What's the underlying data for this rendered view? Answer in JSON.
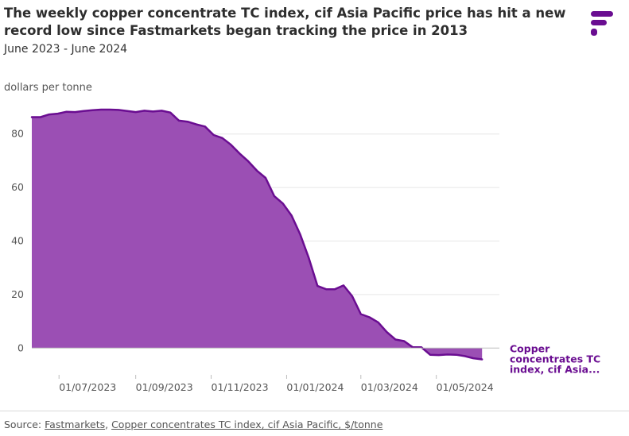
{
  "title": "The weekly copper concentrate TC index, cif Asia Pacific price has hit a new record low since Fastmarkets began tracking the price in 2013",
  "subtitle": "June 2023 - June 2024",
  "source": {
    "prefix": "Source: ",
    "publisher": "Fastmarkets",
    "separator": ", ",
    "series": "Copper concentrates TC index, cif Asia Pacific, $/tonne"
  },
  "colors": {
    "accent": "#6a0d91",
    "fill": "#9b4fb4",
    "logo": "#6a0d91"
  },
  "chart_data": {
    "type": "area",
    "title": "The weekly copper concentrate TC index, cif Asia Pacific price has hit a new record low since Fastmarkets began tracking the price in 2013",
    "ylabel": "dollars per tonne",
    "xlabel": "",
    "ylim": [
      -10,
      90
    ],
    "xlim": [
      "2023-06-09",
      "2024-06-21"
    ],
    "yticks": [
      0,
      20,
      40,
      60,
      80
    ],
    "xticks": [
      "01/07/2023",
      "01/09/2023",
      "01/11/2023",
      "01/01/2024",
      "01/03/2024",
      "01/05/2024"
    ],
    "grid": true,
    "series_label": "Copper concentrates TC index, cif Asia...",
    "series": [
      {
        "name": "Copper concentrates TC index, cif Asia Pacific",
        "points": [
          [
            "2023-06-09",
            86.3
          ],
          [
            "2023-06-16",
            86.3
          ],
          [
            "2023-06-23",
            87.3
          ],
          [
            "2023-06-30",
            87.6
          ],
          [
            "2023-07-07",
            88.3
          ],
          [
            "2023-07-14",
            88.2
          ],
          [
            "2023-07-21",
            88.6
          ],
          [
            "2023-07-28",
            88.9
          ],
          [
            "2023-08-04",
            89.1
          ],
          [
            "2023-08-11",
            89.1
          ],
          [
            "2023-08-18",
            89.0
          ],
          [
            "2023-08-25",
            88.6
          ],
          [
            "2023-09-01",
            88.2
          ],
          [
            "2023-09-08",
            88.7
          ],
          [
            "2023-09-15",
            88.4
          ],
          [
            "2023-09-22",
            88.7
          ],
          [
            "2023-09-29",
            88.0
          ],
          [
            "2023-10-06",
            85.0
          ],
          [
            "2023-10-13",
            84.6
          ],
          [
            "2023-10-20",
            83.6
          ],
          [
            "2023-10-27",
            82.8
          ],
          [
            "2023-11-03",
            79.6
          ],
          [
            "2023-11-10",
            78.5
          ],
          [
            "2023-11-17",
            76.0
          ],
          [
            "2023-11-24",
            72.7
          ],
          [
            "2023-12-01",
            69.8
          ],
          [
            "2023-12-08",
            66.3
          ],
          [
            "2023-12-15",
            63.6
          ],
          [
            "2023-12-22",
            56.8
          ],
          [
            "2023-12-29",
            54.0
          ],
          [
            "2024-01-05",
            49.5
          ],
          [
            "2024-01-12",
            42.4
          ],
          [
            "2024-01-19",
            33.6
          ],
          [
            "2024-01-26",
            23.2
          ],
          [
            "2024-02-02",
            22.0
          ],
          [
            "2024-02-09",
            22.0
          ],
          [
            "2024-02-16",
            23.4
          ],
          [
            "2024-02-23",
            19.4
          ],
          [
            "2024-03-01",
            12.7
          ],
          [
            "2024-03-08",
            11.5
          ],
          [
            "2024-03-15",
            9.6
          ],
          [
            "2024-03-22",
            6.0
          ],
          [
            "2024-03-29",
            3.2
          ],
          [
            "2024-04-05",
            2.6
          ],
          [
            "2024-04-12",
            0.3
          ],
          [
            "2024-04-19",
            0.3
          ],
          [
            "2024-04-26",
            -2.5
          ],
          [
            "2024-05-03",
            -2.6
          ],
          [
            "2024-05-10",
            -2.4
          ],
          [
            "2024-05-17",
            -2.5
          ],
          [
            "2024-05-24",
            -3.0
          ],
          [
            "2024-05-31",
            -3.8
          ],
          [
            "2024-06-07",
            -4.2
          ]
        ]
      }
    ]
  }
}
